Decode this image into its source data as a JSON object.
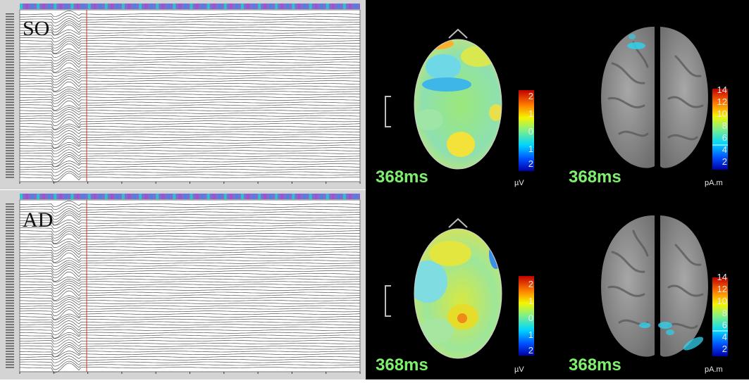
{
  "panels": [
    {
      "condition": "SO",
      "topomap": {
        "time": "368ms",
        "unit": "µV",
        "scale_ticks": [
          "2",
          "1",
          "0",
          "1",
          "2"
        ]
      },
      "cortex": {
        "time": "368ms",
        "unit": "pA.m",
        "scale_ticks": [
          "14",
          "12",
          "10",
          "8",
          "6",
          "4",
          "2"
        ]
      }
    },
    {
      "condition": "AD",
      "topomap": {
        "time": "368ms",
        "unit": "µV",
        "scale_ticks": [
          "2",
          "1",
          "0",
          "1",
          "2"
        ]
      },
      "cortex": {
        "time": "368ms",
        "unit": "pA.m",
        "scale_ticks": [
          "14",
          "12",
          "10",
          "8",
          "6",
          "4",
          "2"
        ]
      }
    }
  ],
  "colors": {
    "eeg_background": "#d4d4d4",
    "trace": "#3a3a3a",
    "cursor": "#c0392b",
    "label_green": "#7ef06e",
    "brain_gray": "#9a9a9a"
  }
}
